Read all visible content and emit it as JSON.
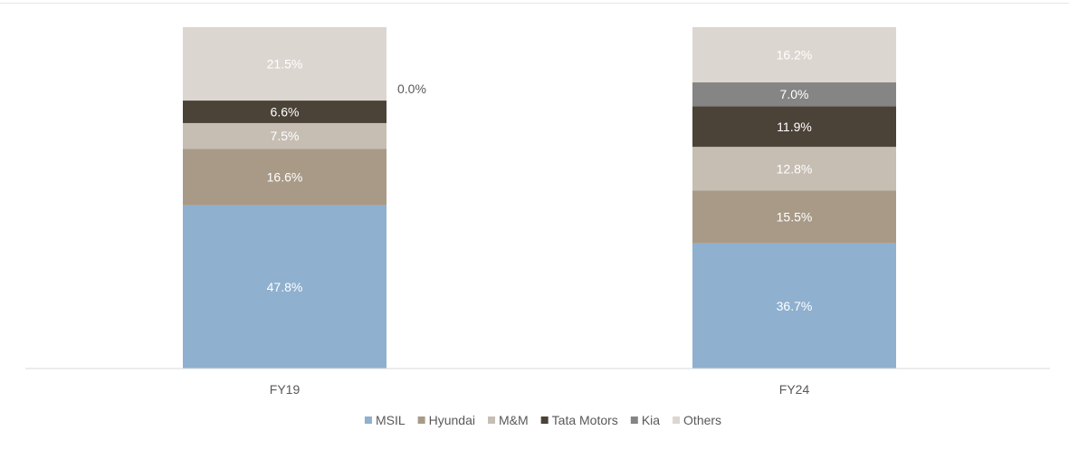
{
  "chart_data": {
    "type": "bar",
    "stacked": true,
    "normalized": true,
    "categories": [
      "FY19",
      "FY24"
    ],
    "series": [
      {
        "name": "MSIL",
        "color": "#8fb0cf",
        "values": [
          47.8,
          36.7
        ],
        "labels": [
          "47.8%",
          "36.7%"
        ]
      },
      {
        "name": "Hyundai",
        "color": "#a89a87",
        "values": [
          16.6,
          15.5
        ],
        "labels": [
          "16.6%",
          "15.5%"
        ]
      },
      {
        "name": "M&M",
        "color": "#c6beb3",
        "values": [
          7.5,
          12.8
        ],
        "labels": [
          "7.5%",
          "12.8%"
        ]
      },
      {
        "name": "Tata Motors",
        "color": "#4b4238",
        "values": [
          6.6,
          11.9
        ],
        "labels": [
          "6.6%",
          "11.9%"
        ]
      },
      {
        "name": "Kia",
        "color": "#858585",
        "values": [
          0.0,
          7.0
        ],
        "labels": [
          "0.0%",
          "7.0%"
        ]
      },
      {
        "name": "Others",
        "color": "#dcd6d0",
        "values": [
          21.5,
          16.2
        ],
        "labels": [
          "21.5%",
          "16.2%"
        ]
      }
    ],
    "ylim": [
      0,
      100
    ],
    "grid": false,
    "legend": "bottom"
  }
}
